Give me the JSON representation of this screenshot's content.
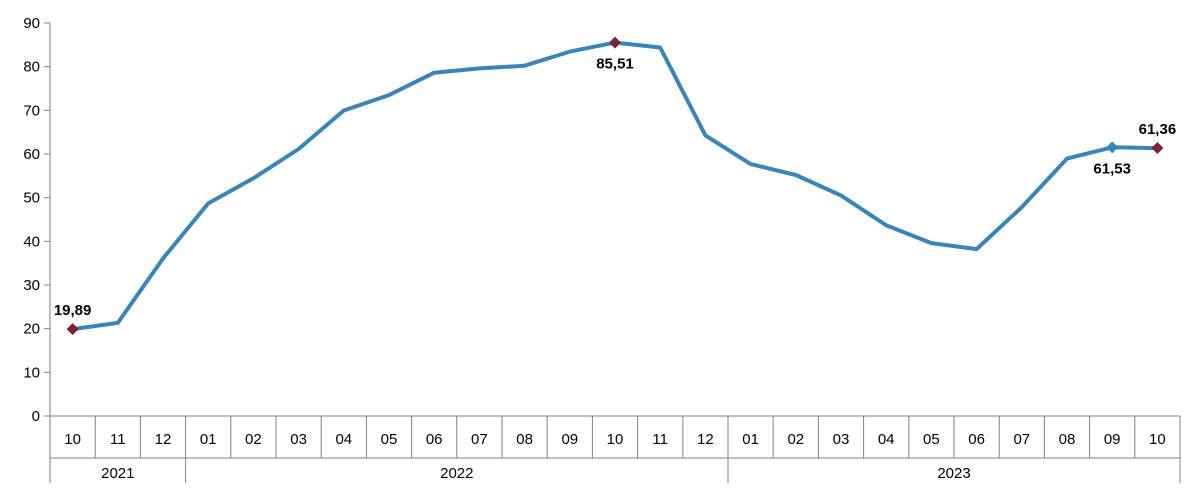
{
  "chart_data": {
    "type": "line",
    "title": "",
    "xlabel": "",
    "ylabel": "",
    "ylim": [
      0,
      90
    ],
    "yticks": [
      0,
      10,
      20,
      30,
      40,
      50,
      60,
      70,
      80,
      90
    ],
    "grid": false,
    "categories": [
      "10",
      "11",
      "12",
      "01",
      "02",
      "03",
      "04",
      "05",
      "06",
      "07",
      "08",
      "09",
      "10",
      "11",
      "12",
      "01",
      "02",
      "03",
      "04",
      "05",
      "06",
      "07",
      "08",
      "09",
      "10"
    ],
    "years": [
      {
        "label": "2021",
        "count": 3
      },
      {
        "label": "2022",
        "count": 12
      },
      {
        "label": "2023",
        "count": 10
      }
    ],
    "series": [
      {
        "values": [
          19.89,
          21.31,
          36.08,
          48.69,
          54.44,
          61.14,
          69.97,
          73.5,
          78.62,
          79.6,
          80.21,
          83.45,
          85.51,
          84.39,
          64.27,
          57.68,
          55.18,
          50.51,
          43.68,
          39.59,
          38.21,
          47.83,
          58.94,
          61.53,
          61.36
        ],
        "color": "#3A84B7"
      }
    ],
    "highlights": [
      {
        "index": 0,
        "label": "19,89",
        "color": "#7B2337",
        "label_pos": "above"
      },
      {
        "index": 12,
        "label": "85,51",
        "color": "#7B2337",
        "label_pos": "below"
      },
      {
        "index": 23,
        "label": "61,53",
        "color": "#3A84B7",
        "label_pos": "below"
      },
      {
        "index": 24,
        "label": "61,36",
        "color": "#7B2337",
        "label_pos": "above"
      }
    ]
  }
}
